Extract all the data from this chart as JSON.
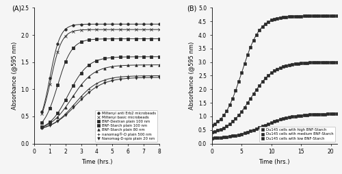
{
  "panel_A": {
    "title": "(A)",
    "xlabel": "Time (hrs.)",
    "ylabel": "Absorbance (@595 nm)",
    "xlim": [
      0,
      8
    ],
    "ylim": [
      0,
      2.5
    ],
    "xticks": [
      0,
      1,
      2,
      3,
      4,
      5,
      6,
      7,
      8
    ],
    "yticks": [
      0,
      0.5,
      1.0,
      1.5,
      2.0,
      2.5
    ],
    "series": [
      {
        "label": "Miltenyi anti Erb2 microbeads",
        "plateau": 2.2,
        "t_mid": 1.0,
        "rate": 3.0,
        "baseline": 0.22
      },
      {
        "label": "Miltenyi basic microbeads",
        "plateau": 2.1,
        "t_mid": 1.05,
        "rate": 2.8,
        "baseline": 0.22
      },
      {
        "label": "BNF-Dextran plain 100 nm",
        "plateau": 1.93,
        "t_mid": 1.5,
        "rate": 2.2,
        "baseline": 0.22
      },
      {
        "label": "BNF-Starch plain 100 nm",
        "plateau": 1.6,
        "t_mid": 2.2,
        "rate": 1.6,
        "baseline": 0.22
      },
      {
        "label": "BNF-Starch plain 80 nm",
        "plateau": 1.45,
        "t_mid": 2.4,
        "rate": 1.4,
        "baseline": 0.22
      },
      {
        "label": "nanomag®-D plain 500 nm",
        "plateau": 1.25,
        "t_mid": 2.6,
        "rate": 1.3,
        "baseline": 0.22
      },
      {
        "label": "Nanomag-D-spio plain 20 nm",
        "plateau": 1.22,
        "t_mid": 2.7,
        "rate": 1.2,
        "baseline": 0.22
      }
    ]
  },
  "panel_B": {
    "title": "(B)",
    "xlabel": "Time (hrs.)",
    "ylabel": "Absorbance (@595 nm)",
    "xlim": [
      0,
      21
    ],
    "ylim": [
      0,
      5
    ],
    "xticks": [
      0,
      5,
      10,
      15,
      20
    ],
    "yticks": [
      0,
      0.5,
      1.0,
      1.5,
      2.0,
      2.5,
      3.0,
      3.5,
      4.0,
      4.5,
      5.0
    ],
    "series": [
      {
        "label": "Du145 cells with high BNF-Starch",
        "plateau": 4.7,
        "t_mid": 5.0,
        "rate": 0.65,
        "baseline": 0.52
      },
      {
        "label": "Du145 cells with medium BNF-Starch",
        "plateau": 3.0,
        "t_mid": 6.5,
        "rate": 0.5,
        "baseline": 0.32
      },
      {
        "label": "Du145 cells with low BNF-Starch",
        "plateau": 1.1,
        "t_mid": 8.5,
        "rate": 0.4,
        "baseline": 0.17
      }
    ]
  }
}
